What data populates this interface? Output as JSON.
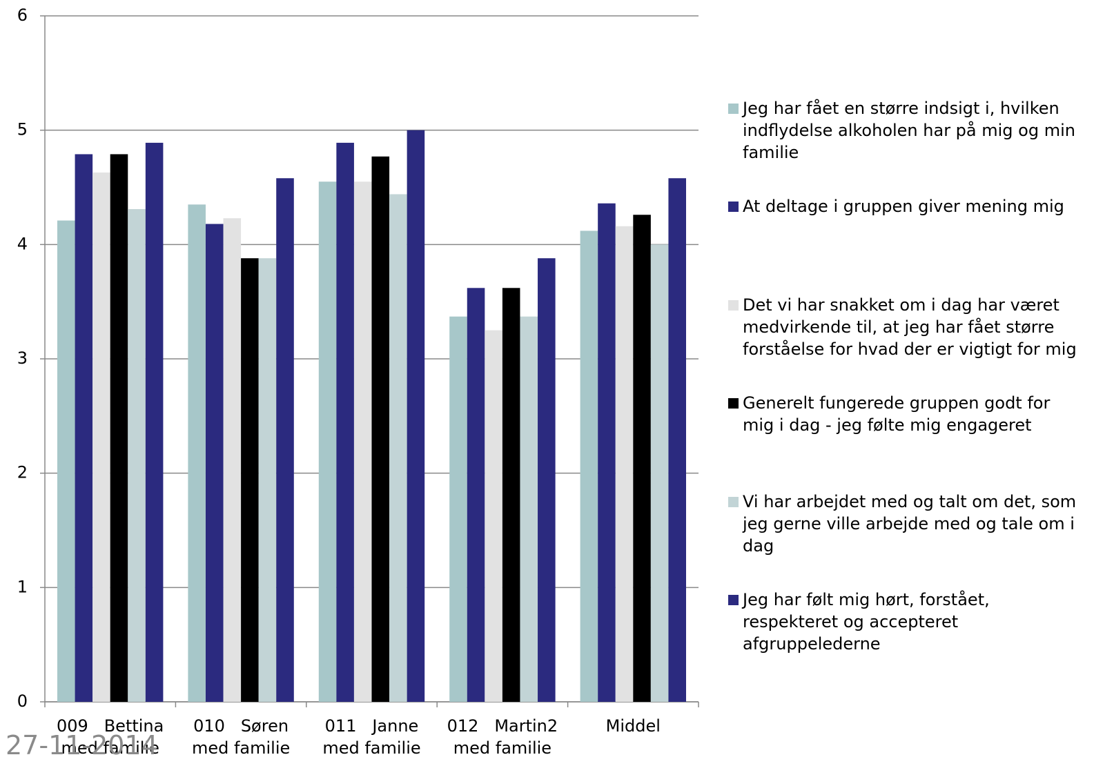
{
  "chart_data": {
    "type": "bar",
    "categories": [
      "009   Bettina\nmed familie",
      "010   Søren\nmed familie",
      "011   Janne\nmed familie",
      "012   Martin2\nmed familie",
      "Middel"
    ],
    "series": [
      {
        "name": "Jeg har fået en større indsigt i, hvilken indflydelse alkoholen har på mig og min familie",
        "color": "#a7c7c9",
        "values": [
          4.21,
          4.35,
          4.55,
          3.37,
          4.12
        ]
      },
      {
        "name": "At deltage i gruppen giver mening mig",
        "color": "#2b2a7f",
        "values": [
          4.79,
          4.18,
          4.89,
          3.62,
          4.36
        ]
      },
      {
        "name": "Det vi har snakket om i dag har været medvirkende til, at jeg har fået større forståelse for hvad der er vigtigt for mig",
        "color": "#e2e2e2",
        "values": [
          4.63,
          4.23,
          4.55,
          3.25,
          4.16
        ]
      },
      {
        "name": "Generelt fungerede gruppen godt for mig i dag - jeg følte mig engageret",
        "color": "#000000",
        "values": [
          4.79,
          3.88,
          4.77,
          3.62,
          4.26
        ]
      },
      {
        "name": "Vi har arbejdet med og talt om det, som jeg gerne ville arbejde med og tale om i dag",
        "color": "#c2d4d6",
        "values": [
          4.31,
          3.88,
          4.44,
          3.37,
          4.0
        ]
      },
      {
        "name": "Jeg har følt mig hørt, forstået, respekteret og accepteret afgruppelederne",
        "color": "#2b2a7f",
        "values": [
          4.89,
          4.58,
          5.0,
          3.88,
          4.58
        ]
      }
    ],
    "ylim": [
      0,
      6
    ],
    "yticks": [
      0,
      1,
      2,
      3,
      4,
      5,
      6
    ],
    "grid": true
  },
  "footer_date": "27-11-2014"
}
